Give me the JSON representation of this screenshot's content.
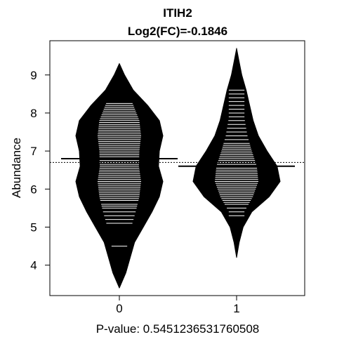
{
  "chart_data": {
    "type": "beanplot",
    "title": "ITIH2",
    "subtitle": "Log2(FC)=-0.1846",
    "xlabel": "P-value: 0.5451236531760508",
    "ylabel": "Abundance",
    "categories": [
      "0",
      "1"
    ],
    "y_ticks": [
      4,
      5,
      6,
      7,
      8,
      9
    ],
    "ylim": [
      3.2,
      9.9
    ],
    "overall_mean": 6.7,
    "group_means": [
      6.8,
      6.6
    ],
    "groups": [
      {
        "name": "0",
        "range": [
          3.4,
          9.3
        ],
        "density": [
          [
            3.4,
            0.0
          ],
          [
            3.8,
            0.15
          ],
          [
            4.2,
            0.25
          ],
          [
            4.6,
            0.35
          ],
          [
            5.0,
            0.55
          ],
          [
            5.4,
            0.75
          ],
          [
            5.8,
            0.92
          ],
          [
            6.2,
            1.0
          ],
          [
            6.6,
            0.9
          ],
          [
            7.0,
            0.92
          ],
          [
            7.4,
            1.0
          ],
          [
            7.8,
            0.92
          ],
          [
            8.2,
            0.65
          ],
          [
            8.6,
            0.32
          ],
          [
            9.0,
            0.12
          ],
          [
            9.3,
            0.0
          ]
        ],
        "points": [
          4.5,
          5.1,
          5.2,
          5.3,
          5.4,
          5.5,
          5.55,
          5.6,
          5.7,
          5.75,
          5.8,
          5.85,
          5.9,
          5.95,
          6.0,
          6.05,
          6.1,
          6.15,
          6.2,
          6.25,
          6.3,
          6.35,
          6.4,
          6.45,
          6.5,
          6.55,
          6.6,
          6.65,
          6.7,
          6.75,
          6.8,
          6.85,
          6.9,
          6.95,
          7.0,
          7.05,
          7.1,
          7.15,
          7.2,
          7.25,
          7.3,
          7.35,
          7.4,
          7.45,
          7.5,
          7.55,
          7.6,
          7.65,
          7.7,
          7.75,
          7.8,
          7.85,
          7.9,
          7.95,
          8.0,
          8.05,
          8.1,
          8.15,
          8.2,
          8.25
        ]
      },
      {
        "name": "1",
        "range": [
          4.2,
          9.7
        ],
        "density": [
          [
            4.2,
            0.0
          ],
          [
            4.6,
            0.06
          ],
          [
            5.0,
            0.15
          ],
          [
            5.4,
            0.35
          ],
          [
            5.8,
            0.75
          ],
          [
            6.2,
            1.0
          ],
          [
            6.6,
            0.93
          ],
          [
            7.0,
            0.7
          ],
          [
            7.4,
            0.5
          ],
          [
            7.8,
            0.38
          ],
          [
            8.2,
            0.3
          ],
          [
            8.6,
            0.22
          ],
          [
            9.0,
            0.12
          ],
          [
            9.4,
            0.05
          ],
          [
            9.7,
            0.0
          ]
        ],
        "points": [
          5.3,
          5.4,
          5.5,
          5.6,
          5.65,
          5.7,
          5.75,
          5.8,
          5.85,
          5.9,
          5.95,
          6.0,
          6.05,
          6.1,
          6.15,
          6.2,
          6.25,
          6.3,
          6.35,
          6.4,
          6.45,
          6.5,
          6.55,
          6.6,
          6.65,
          6.7,
          6.75,
          6.8,
          6.85,
          6.9,
          6.95,
          7.0,
          7.05,
          7.1,
          7.15,
          7.2,
          7.3,
          7.4,
          7.5,
          7.6,
          7.7,
          7.8,
          7.9,
          8.0,
          8.1,
          8.2,
          8.3,
          8.4,
          8.5,
          8.6
        ]
      }
    ],
    "colors": {
      "bean": "#000000",
      "points": "#ffffff",
      "background": "#ffffff"
    }
  }
}
